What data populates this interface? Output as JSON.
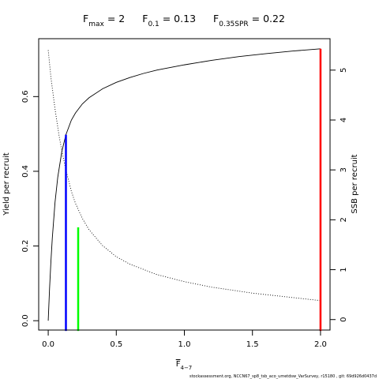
{
  "chart_data": {
    "type": "line",
    "title_parts": [
      {
        "main": "F",
        "sub": "max",
        "value": " = 2"
      },
      {
        "main": "F",
        "sub": "0.1",
        "value": " = 0.13"
      },
      {
        "main": "F",
        "sub": "0.35SPR",
        "value": " = 0.22"
      }
    ],
    "xlabel": {
      "main": "F",
      "sub": "4−7"
    },
    "ylabel_left": "Yield per recruit",
    "ylabel_right": "SSB per recruit",
    "xlim": [
      -0.07,
      2.07
    ],
    "ylim_left": [
      -0.025,
      0.755
    ],
    "ylim_right": [
      -0.21,
      5.63
    ],
    "x_ticks": [
      0,
      0.5,
      1,
      1.5,
      2
    ],
    "x_tick_labels": [
      "0.0",
      "0.5",
      "1.0",
      "1.5",
      "2.0"
    ],
    "y_left_ticks": [
      0,
      0.2,
      0.4,
      0.6
    ],
    "y_left_tick_labels": [
      "0.0",
      "0.2",
      "0.4",
      "0.6"
    ],
    "y_right_ticks": [
      0,
      1,
      2,
      3,
      4,
      5
    ],
    "y_right_tick_labels": [
      "0",
      "1",
      "2",
      "3",
      "4",
      "5"
    ],
    "series": [
      {
        "axis": "left",
        "style": "solid",
        "color": "#000000",
        "x": [
          0,
          0.01,
          0.02,
          0.03,
          0.05,
          0.07,
          0.1,
          0.13,
          0.17,
          0.2,
          0.25,
          0.3,
          0.4,
          0.5,
          0.6,
          0.7,
          0.8,
          1.0,
          1.2,
          1.4,
          1.6,
          1.8,
          2.0
        ],
        "values": [
          0,
          0.087,
          0.16,
          0.221,
          0.317,
          0.384,
          0.453,
          0.498,
          0.537,
          0.556,
          0.58,
          0.597,
          0.621,
          0.638,
          0.651,
          0.662,
          0.671,
          0.685,
          0.697,
          0.707,
          0.715,
          0.722,
          0.728
        ]
      },
      {
        "axis": "right",
        "style": "dotted",
        "color": "#000000",
        "x": [
          0,
          0.02,
          0.05,
          0.08,
          0.1,
          0.13,
          0.17,
          0.2,
          0.25,
          0.3,
          0.4,
          0.5,
          0.6,
          0.8,
          1.0,
          1.2,
          1.5,
          1.8,
          2.0
        ],
        "values": [
          5.4,
          4.85,
          4.22,
          3.68,
          3.38,
          3.0,
          2.57,
          2.33,
          2.03,
          1.8,
          1.48,
          1.26,
          1.11,
          0.9,
          0.76,
          0.65,
          0.53,
          0.44,
          0.38
        ]
      }
    ],
    "reference_lines": [
      {
        "name": "F0.1",
        "x": 0.13,
        "y_top": 0.498,
        "color": "#0000ff"
      },
      {
        "name": "F0.35SPR",
        "x": 0.22,
        "y_top": 0.25,
        "color": "#00ff00"
      },
      {
        "name": "Fmax",
        "x": 2.0,
        "y_top": 0.728,
        "color": "#ff0000"
      }
    ],
    "footer": "stockassessment.org, NCCN67_sp8_tsb_aco_umetdsw_VarSurvey, r15180 , git: 69d926d0437d"
  }
}
